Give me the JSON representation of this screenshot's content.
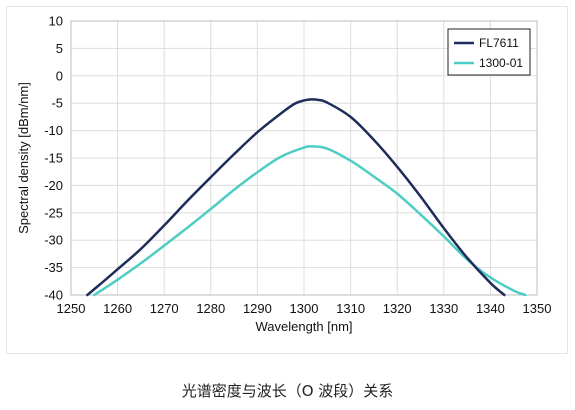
{
  "caption": "光谱密度与波长（O 波段）关系",
  "chart_data": {
    "type": "line",
    "xlabel": "Wavelength [nm]",
    "ylabel": "Spectral density [dBm/nm]",
    "xlim": [
      1250,
      1350
    ],
    "ylim": [
      -40,
      10
    ],
    "xticks": [
      1250,
      1260,
      1270,
      1280,
      1290,
      1300,
      1310,
      1320,
      1330,
      1340,
      1350
    ],
    "yticks": [
      10,
      5,
      0,
      -5,
      -10,
      -15,
      -20,
      -25,
      -30,
      -35,
      -40
    ],
    "grid": true,
    "legend_position": "top-right",
    "series": [
      {
        "name": "FL7611",
        "color": "#1f2d5a",
        "x": [
          1253.5,
          1257,
          1260,
          1265,
          1270,
          1275,
          1280,
          1285,
          1290,
          1295,
          1298,
          1300,
          1301.5,
          1303,
          1305,
          1310,
          1315,
          1320,
          1325,
          1330,
          1335,
          1340,
          1343
        ],
        "y": [
          -40,
          -37.5,
          -35.3,
          -31.6,
          -27.3,
          -22.8,
          -18.5,
          -14.3,
          -10.3,
          -6.9,
          -5.1,
          -4.5,
          -4.3,
          -4.4,
          -4.9,
          -7.5,
          -11.7,
          -16.6,
          -22.0,
          -27.8,
          -33.2,
          -37.8,
          -40
        ]
      },
      {
        "name": "1300-01",
        "color": "#4ecdc4",
        "x": [
          1255,
          1260,
          1265,
          1270,
          1275,
          1280,
          1285,
          1290,
          1295,
          1300,
          1302,
          1305,
          1310,
          1315,
          1320,
          1325,
          1330,
          1335,
          1340,
          1345,
          1347.5
        ],
        "y": [
          -40,
          -37.2,
          -34.2,
          -31.0,
          -27.7,
          -24.3,
          -20.8,
          -17.6,
          -14.8,
          -13.1,
          -12.9,
          -13.3,
          -15.5,
          -18.4,
          -21.5,
          -25.3,
          -29.3,
          -33.5,
          -36.8,
          -39.2,
          -40
        ]
      }
    ]
  }
}
